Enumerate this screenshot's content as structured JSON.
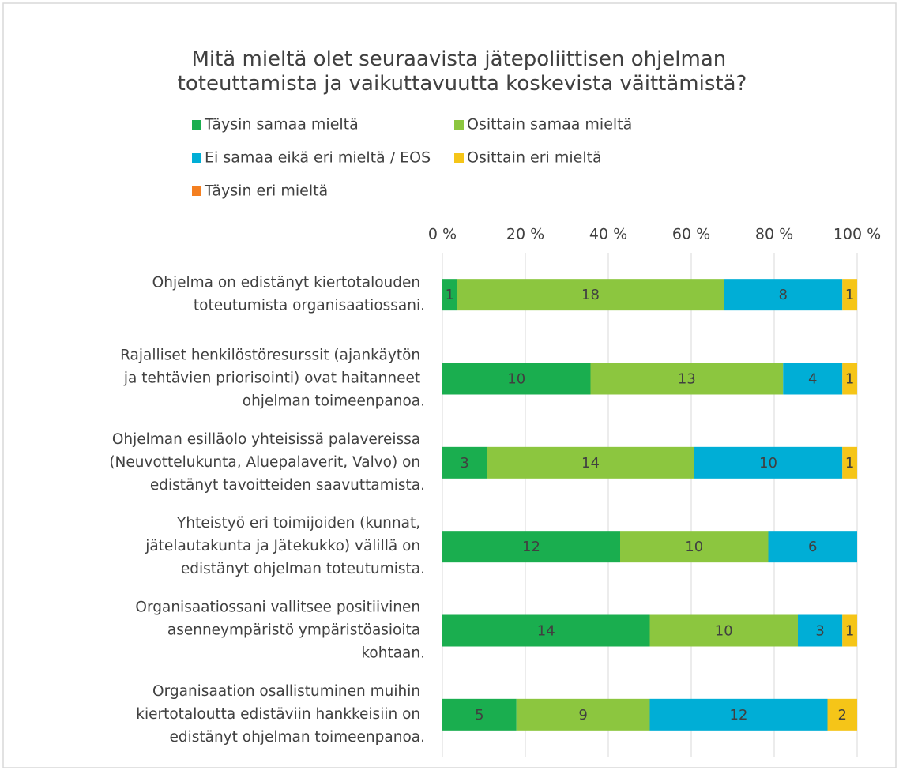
{
  "chart_data": {
    "type": "bar",
    "orientation": "horizontal",
    "stacking": "percent",
    "title": "Mitä mieltä olet seuraavista jätepoliittisen ohjelman toteuttamista ja vaikuttavuutta koskevista väittämistä?",
    "categories": [
      "Ohjelma on edistänyt kiertotalouden toteutumista organisaatiossani.",
      "Rajalliset henkilöstöresurssit (ajankäytön ja tehtävien priorisointi) ovat haitanneet ohjelman toimeenpanoa.",
      "Ohjelman esilläolo yhteisissä palavereissa (Neuvottelukunta, Aluepalaverit, Valvo) on edistänyt tavoitteiden saavuttamista.",
      "Yhteistyö eri toimijoiden (kunnat, jätelautakunta ja Jätekukko) välillä on edistänyt ohjelman toteutumista.",
      "Organisaatiossani vallitsee positiivinen asenneympäristö ympäristöasioita kohtaan.",
      "Organisaation osallistuminen muihin kiertotaloutta edistäviin hankkeisiin on edistänyt ohjelman toimeenpanoa."
    ],
    "series": [
      {
        "name": "Täysin samaa mieltä",
        "color": "#1aae4f",
        "values": [
          1,
          10,
          3,
          12,
          14,
          5
        ]
      },
      {
        "name": "Osittain samaa mieltä",
        "color": "#8cc63f",
        "values": [
          18,
          13,
          14,
          10,
          10,
          9
        ]
      },
      {
        "name": "Ei samaa eikä eri mieltä / EOS",
        "color": "#00aed6",
        "values": [
          8,
          4,
          10,
          6,
          3,
          12
        ]
      },
      {
        "name": "Osittain eri mieltä",
        "color": "#f5c518",
        "values": [
          1,
          1,
          1,
          0,
          1,
          2
        ]
      },
      {
        "name": "Täysin eri mieltä",
        "color": "#f47f20",
        "values": [
          0,
          0,
          0,
          0,
          0,
          0
        ]
      }
    ],
    "xlim": [
      0,
      100
    ],
    "xticks": [
      {
        "value": 0,
        "label": "0 %"
      },
      {
        "value": 20,
        "label": "20 %"
      },
      {
        "value": 40,
        "label": "40 %"
      },
      {
        "value": 60,
        "label": "60 %"
      },
      {
        "value": 80,
        "label": "80 %"
      },
      {
        "value": 100,
        "label": "100 %"
      }
    ],
    "grid": true,
    "legend": "top"
  }
}
